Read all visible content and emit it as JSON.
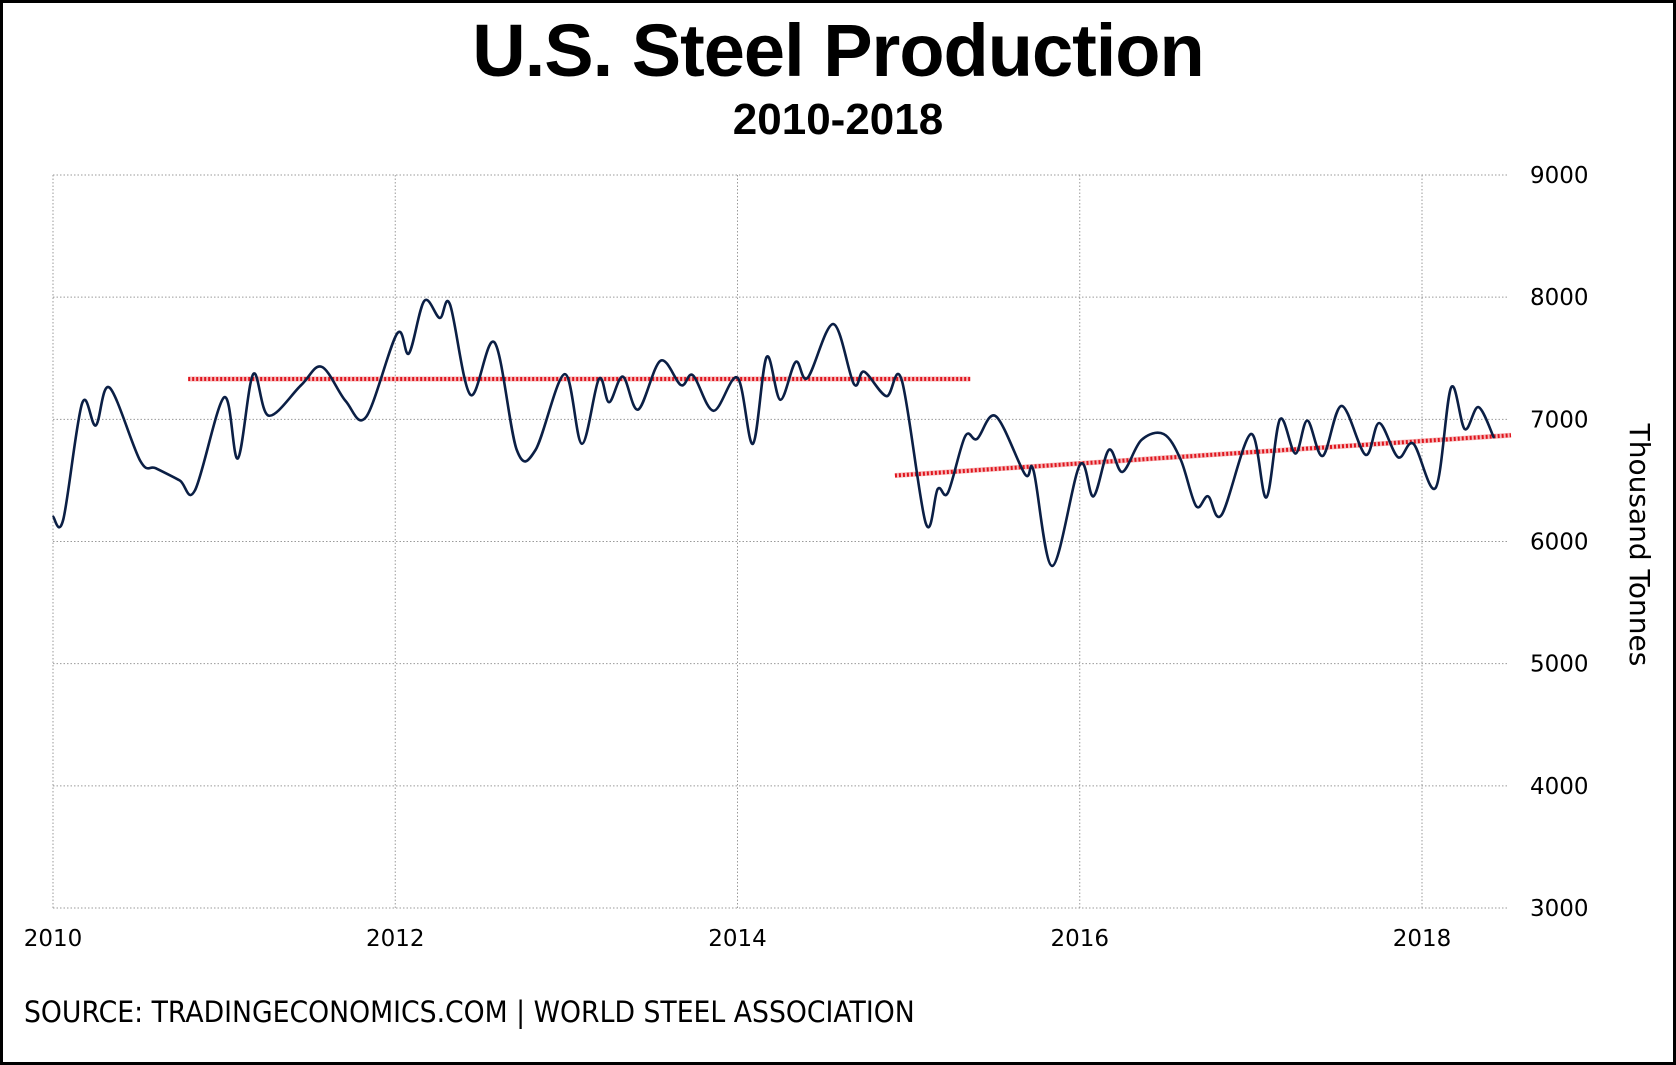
{
  "header": {
    "title": "U.S. Steel Production",
    "subtitle": "2010-2018"
  },
  "footer": {
    "source": "SOURCE: TRADINGECONOMICS.COM | WORLD STEEL ASSOCIATION"
  },
  "colors": {
    "series_line": "#0b1f45",
    "trend_line": "#e0141c",
    "grid": "#9a9a9a",
    "border": "#000000"
  },
  "chart_data": {
    "type": "line",
    "title": "U.S. Steel Production",
    "subtitle": "2010-2018",
    "xlabel": "",
    "ylabel": "Thousand Tonnes",
    "xlim": [
      2010,
      2018.5
    ],
    "ylim": [
      3000,
      9000
    ],
    "x_ticks": [
      2010,
      2012,
      2014,
      2016,
      2018
    ],
    "x_tick_labels": [
      "2010",
      "2012",
      "2014",
      "2016",
      "2018"
    ],
    "y_ticks": [
      3000,
      4000,
      5000,
      6000,
      7000,
      8000,
      9000
    ],
    "y_tick_labels": [
      "3000",
      "4000",
      "5000",
      "6000",
      "7000",
      "8000",
      "9000"
    ],
    "y_axis_side": "right",
    "grid": true,
    "legend": "none",
    "series": [
      {
        "name": "U.S. Steel Production",
        "x": [
          2010.0,
          2010.06,
          2010.17,
          2010.25,
          2010.33,
          2010.51,
          2010.6,
          2010.74,
          2010.83,
          2011.0,
          2011.08,
          2011.17,
          2011.26,
          2011.45,
          2011.57,
          2011.71,
          2011.83,
          2012.01,
          2012.08,
          2012.17,
          2012.26,
          2012.32,
          2012.44,
          2012.58,
          2012.71,
          2012.82,
          2012.99,
          2013.09,
          2013.19,
          2013.25,
          2013.33,
          2013.42,
          2013.55,
          2013.67,
          2013.74,
          2013.86,
          2014.0,
          2014.09,
          2014.17,
          2014.25,
          2014.34,
          2014.41,
          2014.56,
          2014.68,
          2014.74,
          2014.87,
          2014.96,
          2015.1,
          2015.17,
          2015.23,
          2015.33,
          2015.4,
          2015.51,
          2015.68,
          2015.73,
          2015.84,
          2016.0,
          2016.08,
          2016.17,
          2016.25,
          2016.36,
          2016.49,
          2016.59,
          2016.68,
          2016.75,
          2016.83,
          2017.0,
          2017.09,
          2017.17,
          2017.26,
          2017.33,
          2017.42,
          2017.53,
          2017.67,
          2017.75,
          2017.86,
          2017.95,
          2018.08,
          2018.17,
          2018.25,
          2018.33,
          2018.42
        ],
        "values": [
          6205,
          6180,
          7130,
          6950,
          7260,
          6660,
          6600,
          6500,
          6420,
          7180,
          6680,
          7370,
          7030,
          7280,
          7430,
          7150,
          7020,
          7700,
          7540,
          7970,
          7830,
          7940,
          7200,
          7630,
          6750,
          6750,
          7370,
          6800,
          7330,
          7140,
          7350,
          7080,
          7480,
          7280,
          7360,
          7070,
          7340,
          6800,
          7510,
          7160,
          7470,
          7340,
          7780,
          7290,
          7390,
          7190,
          7320,
          6150,
          6430,
          6400,
          6860,
          6840,
          7025,
          6550,
          6580,
          5800,
          6625,
          6370,
          6750,
          6570,
          6830,
          6880,
          6670,
          6290,
          6370,
          6220,
          6880,
          6360,
          7000,
          6720,
          6990,
          6700,
          7110,
          6710,
          6970,
          6690,
          6800,
          6440,
          7260,
          6920,
          7100,
          6850
        ]
      }
    ],
    "annotations": [
      {
        "type": "trend_line",
        "name": "trend-2011-2015",
        "x": [
          2010.79,
          2015.36
        ],
        "y": [
          7330,
          7330
        ]
      },
      {
        "type": "trend_line",
        "name": "trend-2015-2018",
        "x": [
          2014.92,
          2018.52
        ],
        "y": [
          6540,
          6870
        ]
      }
    ]
  }
}
